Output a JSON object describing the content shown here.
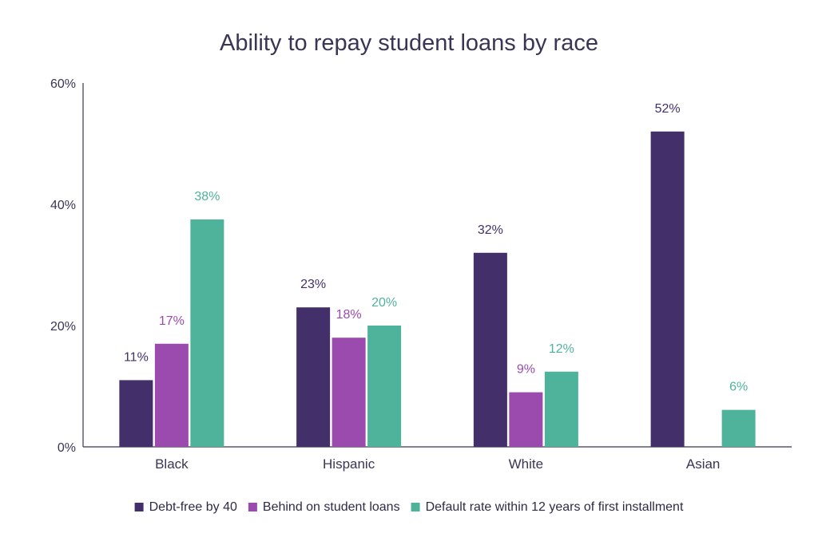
{
  "chart_data": {
    "type": "bar",
    "title": "Ability to repay student loans by race",
    "xlabel": "",
    "ylabel": "",
    "ylim": [
      0,
      60
    ],
    "yticks": [
      "0%",
      "20%",
      "40%",
      "60%"
    ],
    "ytick_values": [
      0,
      20,
      40,
      60
    ],
    "categories": [
      "Black",
      "Hispanic",
      "White",
      "Asian"
    ],
    "series": [
      {
        "name": "Debt-free by 40",
        "color": "#432f69",
        "values": [
          11,
          23,
          32,
          52
        ],
        "labels": [
          "11%",
          "23%",
          "32%",
          "52%"
        ]
      },
      {
        "name": "Behind on student loans",
        "color": "#9b4aae",
        "values": [
          17,
          18,
          9,
          null
        ],
        "labels": [
          "17%",
          "18%",
          "9%",
          ""
        ]
      },
      {
        "name": "Default rate within 12 years of first installment",
        "color": "#4fb39b",
        "values": [
          37.5,
          20,
          12.4,
          6.1
        ],
        "labels": [
          "38%",
          "20%",
          "12%",
          "6%"
        ]
      }
    ],
    "grid": false,
    "legend_position": "bottom"
  }
}
